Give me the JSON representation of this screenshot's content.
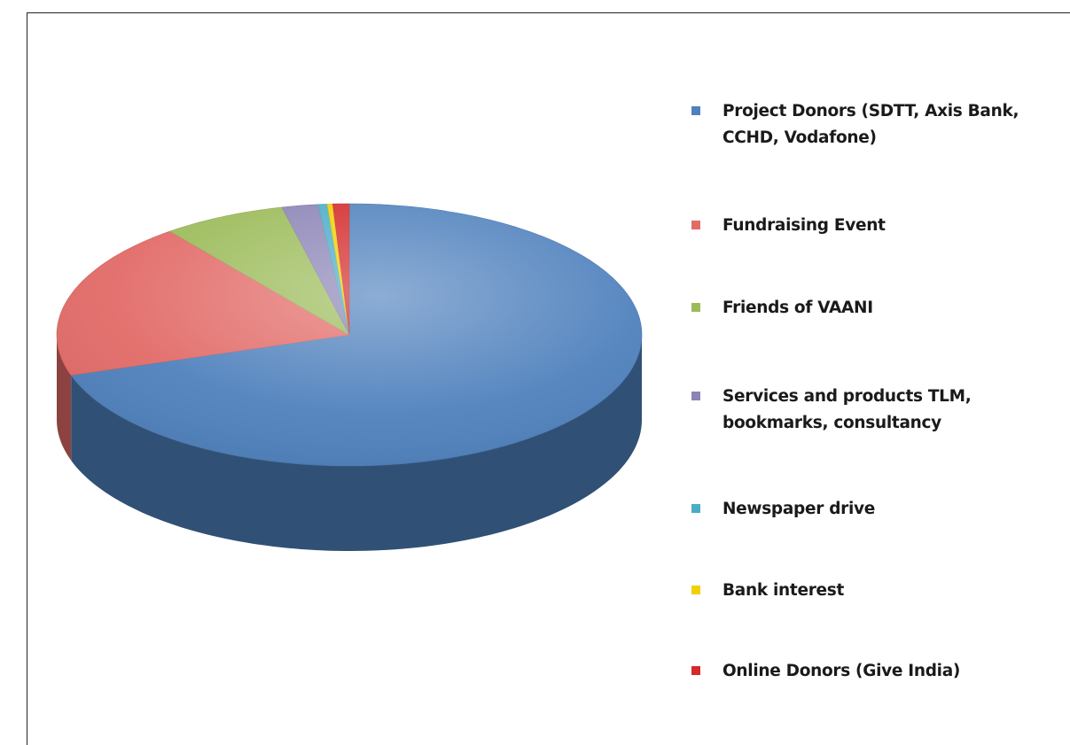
{
  "chart_data": {
    "type": "pie",
    "style": "3d",
    "categories": [
      "Project Donors (SDTT, Axis Bank, CCHD, Vodafone)",
      "Fundraising Event",
      "Friends of VAANI",
      "Services and products TLM, bookmarks, consultancy",
      "Newspaper drive",
      "Bank interest",
      "Online Donors (Give India)"
    ],
    "values": [
      70.0,
      19.5,
      6.8,
      2.0,
      0.5,
      0.3,
      0.9
    ],
    "colors": [
      "#4f81bd",
      "#e26b68",
      "#9bbb59",
      "#8b84b6",
      "#4bacc6",
      "#f0d000",
      "#d42a2a"
    ],
    "legend": "right"
  }
}
